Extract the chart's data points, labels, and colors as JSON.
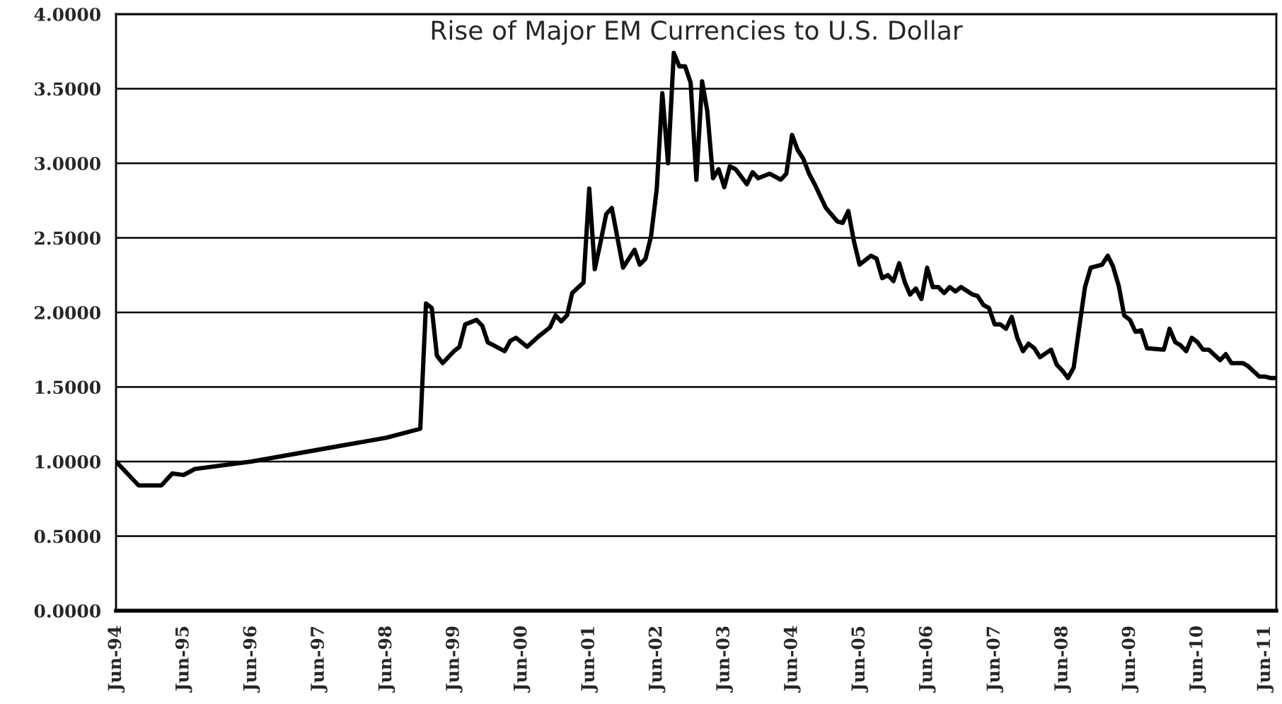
{
  "chart_data": {
    "type": "line",
    "title": "Rise of Major EM Currencies to U.S. Dollar",
    "x": [
      "1994-06",
      "1994-10",
      "1995-02",
      "1995-04",
      "1995-06",
      "1995-08",
      "1996-06",
      "1997-06",
      "1998-06",
      "1998-12",
      "1999-01",
      "1999-02",
      "1999-03",
      "1999-04",
      "1999-06",
      "1999-07",
      "1999-08",
      "1999-10",
      "1999-11",
      "1999-12",
      "2000-03",
      "2000-04",
      "2000-05",
      "2000-07",
      "2000-09",
      "2000-11",
      "2000-12",
      "2001-01",
      "2001-02",
      "2001-03",
      "2001-05",
      "2001-06",
      "2001-07",
      "2001-08",
      "2001-09",
      "2001-10",
      "2001-12",
      "2002-02",
      "2002-03",
      "2002-04",
      "2002-05",
      "2002-06",
      "2002-07",
      "2002-08",
      "2002-09",
      "2002-10",
      "2002-11",
      "2002-12",
      "2003-01",
      "2003-02",
      "2003-03",
      "2003-04",
      "2003-05",
      "2003-06",
      "2003-07",
      "2003-08",
      "2003-10",
      "2003-11",
      "2003-12",
      "2004-02",
      "2004-04",
      "2004-05",
      "2004-06",
      "2004-07",
      "2004-08",
      "2004-09",
      "2004-10",
      "2004-12",
      "2005-02",
      "2005-03",
      "2005-04",
      "2005-05",
      "2005-06",
      "2005-08",
      "2005-09",
      "2005-10",
      "2005-11",
      "2005-12",
      "2006-01",
      "2006-02",
      "2006-03",
      "2006-04",
      "2006-05",
      "2006-06",
      "2006-07",
      "2006-08",
      "2006-09",
      "2006-10",
      "2006-11",
      "2006-12",
      "2007-02",
      "2007-03",
      "2007-04",
      "2007-05",
      "2007-06",
      "2007-07",
      "2007-08",
      "2007-09",
      "2007-10",
      "2007-11",
      "2007-12",
      "2008-01",
      "2008-02",
      "2008-04",
      "2008-05",
      "2008-06",
      "2008-07",
      "2008-08",
      "2008-09",
      "2008-10",
      "2008-11",
      "2009-01",
      "2009-02",
      "2009-03",
      "2009-04",
      "2009-05",
      "2009-06",
      "2009-07",
      "2009-08",
      "2009-09",
      "2009-12",
      "2010-01",
      "2010-02",
      "2010-03",
      "2010-04",
      "2010-05",
      "2010-06",
      "2010-07",
      "2010-08",
      "2010-10",
      "2010-11",
      "2010-12",
      "2011-02",
      "2011-03",
      "2011-05",
      "2011-06",
      "2011-07",
      "2011-08"
    ],
    "series": [
      {
        "color": "#000000",
        "values": [
          1.0,
          0.84,
          0.84,
          0.92,
          0.91,
          0.95,
          1.0,
          1.08,
          1.16,
          1.22,
          2.06,
          2.03,
          1.71,
          1.66,
          1.74,
          1.77,
          1.92,
          1.95,
          1.91,
          1.8,
          1.74,
          1.81,
          1.83,
          1.77,
          1.84,
          1.9,
          1.98,
          1.94,
          1.98,
          2.13,
          2.2,
          2.83,
          2.29,
          2.47,
          2.66,
          2.7,
          2.3,
          2.42,
          2.32,
          2.36,
          2.51,
          2.83,
          3.47,
          3.0,
          3.74,
          3.65,
          3.65,
          3.54,
          2.89,
          3.55,
          3.35,
          2.9,
          2.96,
          2.84,
          2.98,
          2.96,
          2.86,
          2.94,
          2.9,
          2.93,
          2.89,
          2.93,
          3.19,
          3.09,
          3.03,
          2.93,
          2.86,
          2.7,
          2.61,
          2.6,
          2.68,
          2.48,
          2.32,
          2.38,
          2.36,
          2.23,
          2.25,
          2.21,
          2.33,
          2.2,
          2.12,
          2.16,
          2.09,
          2.3,
          2.17,
          2.17,
          2.13,
          2.17,
          2.14,
          2.17,
          2.12,
          2.11,
          2.05,
          2.03,
          1.92,
          1.92,
          1.89,
          1.97,
          1.83,
          1.74,
          1.79,
          1.76,
          1.7,
          1.75,
          1.65,
          1.61,
          1.56,
          1.63,
          1.91,
          2.17,
          2.3,
          2.32,
          2.38,
          2.31,
          2.18,
          1.98,
          1.95,
          1.87,
          1.88,
          1.76,
          1.75,
          1.89,
          1.8,
          1.78,
          1.74,
          1.83,
          1.8,
          1.75,
          1.75,
          1.68,
          1.72,
          1.66,
          1.66,
          1.64,
          1.57,
          1.57,
          1.56,
          1.56
        ]
      }
    ],
    "xlim": [
      "1994-06",
      "2011-08"
    ],
    "xticks": [
      {
        "value": "1994-06",
        "label": "Jun-94"
      },
      {
        "value": "1995-06",
        "label": "Jun-95"
      },
      {
        "value": "1996-06",
        "label": "Jun-96"
      },
      {
        "value": "1997-06",
        "label": "Jun-97"
      },
      {
        "value": "1998-06",
        "label": "Jun-98"
      },
      {
        "value": "1999-06",
        "label": "Jun-99"
      },
      {
        "value": "2000-06",
        "label": "Jun-00"
      },
      {
        "value": "2001-06",
        "label": "Jun-01"
      },
      {
        "value": "2002-06",
        "label": "Jun-02"
      },
      {
        "value": "2003-06",
        "label": "Jun-03"
      },
      {
        "value": "2004-06",
        "label": "Jun-04"
      },
      {
        "value": "2005-06",
        "label": "Jun-05"
      },
      {
        "value": "2006-06",
        "label": "Jun-06"
      },
      {
        "value": "2007-06",
        "label": "Jun-07"
      },
      {
        "value": "2008-06",
        "label": "Jun-08"
      },
      {
        "value": "2009-06",
        "label": "Jun-09"
      },
      {
        "value": "2010-06",
        "label": "Jun-10"
      },
      {
        "value": "2011-06",
        "label": "Jun-11"
      }
    ],
    "ylim": [
      0,
      4
    ],
    "yticks": [
      {
        "value": 0,
        "label": "0.0000"
      },
      {
        "value": 0.5,
        "label": "0.5000"
      },
      {
        "value": 1,
        "label": "1.0000"
      },
      {
        "value": 1.5,
        "label": "1.5000"
      },
      {
        "value": 2,
        "label": "2.0000"
      },
      {
        "value": 2.5,
        "label": "2.5000"
      },
      {
        "value": 3,
        "label": "3.0000"
      },
      {
        "value": 3.5,
        "label": "3.5000"
      },
      {
        "value": 4,
        "label": "4.0000"
      }
    ],
    "grid": "y",
    "marker": "none",
    "line_style": "solid"
  }
}
